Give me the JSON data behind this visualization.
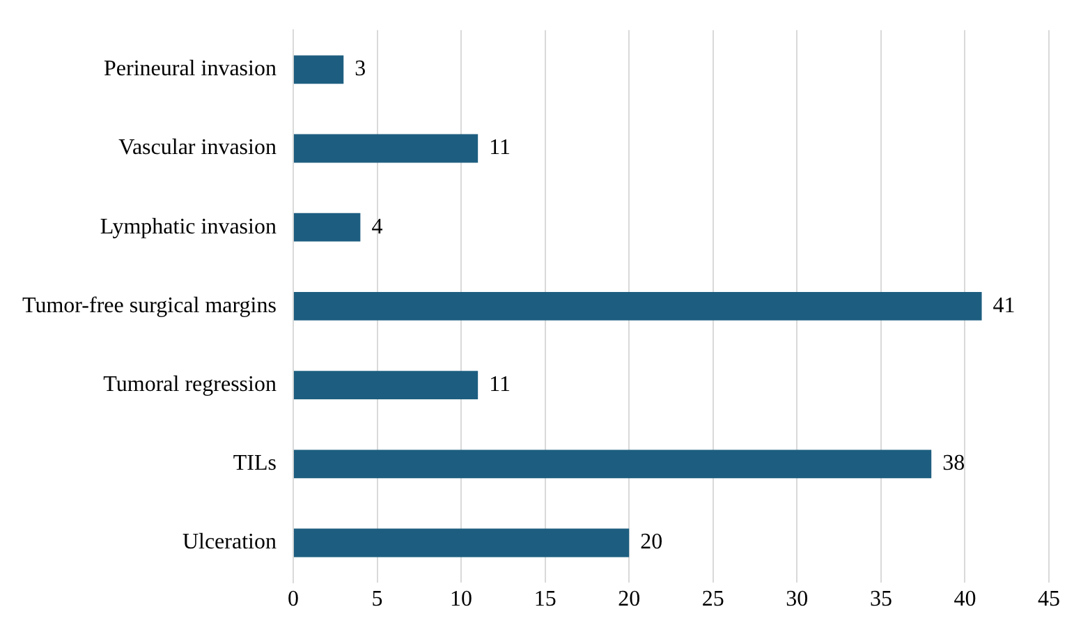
{
  "chart_data": {
    "type": "bar",
    "orientation": "horizontal",
    "categories": [
      "Perineural invasion",
      "Vascular invasion",
      "Lymphatic invasion",
      "Tumor-free surgical margins",
      "Tumoral regression",
      "TILs",
      "Ulceration"
    ],
    "values": [
      3,
      11,
      4,
      41,
      11,
      38,
      20
    ],
    "color": "#1d5e80",
    "xlim": [
      0,
      45
    ],
    "xticks": [
      0,
      5,
      10,
      15,
      20,
      25,
      30,
      35,
      40,
      45
    ],
    "grid": "x",
    "legend": false,
    "data_labels": true
  }
}
